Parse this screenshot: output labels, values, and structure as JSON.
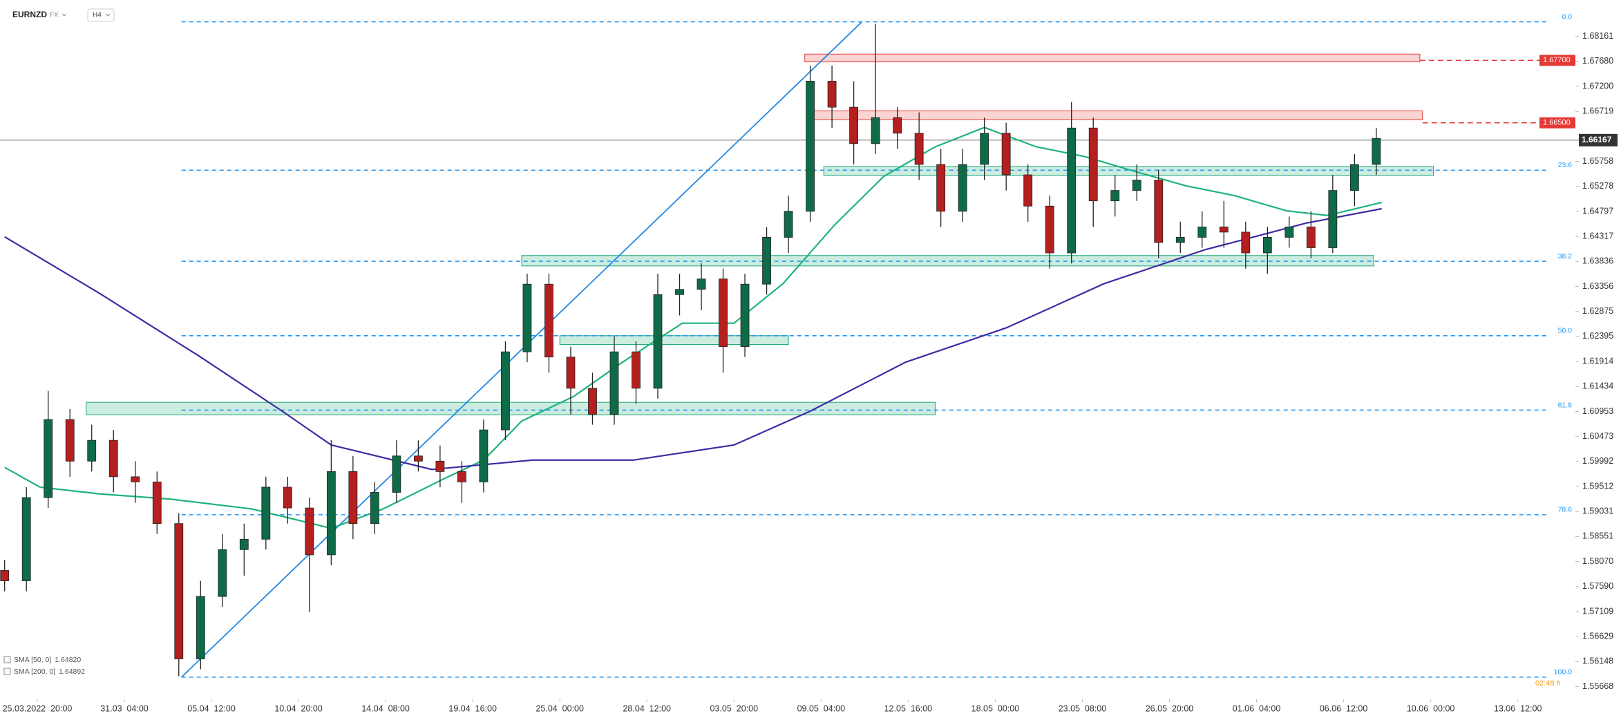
{
  "chart_data": {
    "type": "candlestick",
    "symbol": "EURNZD",
    "market": "FX",
    "timeframe": "H4",
    "up_color": "#0f6b47",
    "down_color": "#b3201f",
    "x": [
      -12,
      -4,
      4,
      12,
      20,
      28,
      36,
      44,
      52,
      60,
      68,
      76,
      84,
      92,
      100,
      108,
      116,
      124,
      132,
      140,
      148,
      156,
      164,
      172,
      180,
      188,
      196,
      204,
      212,
      220,
      228,
      236,
      244,
      252,
      260,
      268,
      276,
      284,
      292,
      300,
      308,
      316,
      324,
      332,
      340,
      348,
      356,
      364,
      372,
      380,
      388,
      396,
      404,
      412,
      420,
      428,
      436,
      444,
      452,
      460,
      468,
      476,
      484,
      492
    ],
    "open": [
      1.579,
      1.577,
      1.593,
      1.608,
      1.6,
      1.604,
      1.597,
      1.596,
      1.588,
      1.562,
      1.574,
      1.583,
      1.585,
      1.595,
      1.591,
      1.582,
      1.598,
      1.588,
      1.594,
      1.601,
      1.6,
      1.598,
      1.596,
      1.606,
      1.621,
      1.634,
      1.62,
      1.614,
      1.609,
      1.621,
      1.614,
      1.632,
      1.633,
      1.635,
      1.622,
      1.634,
      1.643,
      1.648,
      1.673,
      1.668,
      1.661,
      1.666,
      1.663,
      1.657,
      1.648,
      1.657,
      1.663,
      1.655,
      1.649,
      1.64,
      1.664,
      1.65,
      1.652,
      1.654,
      1.642,
      1.643,
      1.645,
      1.644,
      1.64,
      1.643,
      1.645,
      1.641,
      1.652,
      1.657
    ],
    "high": [
      1.581,
      1.595,
      1.6135,
      1.61,
      1.607,
      1.606,
      1.6,
      1.598,
      1.59,
      1.577,
      1.586,
      1.588,
      1.597,
      1.597,
      1.593,
      1.604,
      1.601,
      1.596,
      1.604,
      1.604,
      1.603,
      1.6,
      1.608,
      1.623,
      1.636,
      1.636,
      1.622,
      1.617,
      1.624,
      1.623,
      1.636,
      1.636,
      1.638,
      1.637,
      1.636,
      1.645,
      1.651,
      1.676,
      1.676,
      1.673,
      1.684,
      1.668,
      1.667,
      1.66,
      1.66,
      1.666,
      1.665,
      1.657,
      1.651,
      1.669,
      1.666,
      1.655,
      1.657,
      1.656,
      1.646,
      1.648,
      1.65,
      1.646,
      1.645,
      1.647,
      1.648,
      1.655,
      1.659,
      1.664
    ],
    "low": [
      1.575,
      1.575,
      1.591,
      1.597,
      1.598,
      1.594,
      1.592,
      1.586,
      1.5587,
      1.56,
      1.572,
      1.578,
      1.583,
      1.588,
      1.571,
      1.58,
      1.585,
      1.586,
      1.592,
      1.598,
      1.595,
      1.592,
      1.594,
      1.604,
      1.619,
      1.617,
      1.609,
      1.607,
      1.607,
      1.611,
      1.612,
      1.628,
      1.629,
      1.617,
      1.62,
      1.632,
      1.64,
      1.646,
      1.664,
      1.657,
      1.659,
      1.66,
      1.654,
      1.645,
      1.646,
      1.654,
      1.652,
      1.646,
      1.637,
      1.638,
      1.645,
      1.647,
      1.65,
      1.639,
      1.64,
      1.641,
      1.641,
      1.637,
      1.636,
      1.641,
      1.639,
      1.64,
      1.649,
      1.655
    ],
    "close": [
      1.577,
      1.593,
      1.608,
      1.6,
      1.604,
      1.597,
      1.596,
      1.588,
      1.562,
      1.574,
      1.583,
      1.585,
      1.595,
      1.591,
      1.582,
      1.598,
      1.588,
      1.594,
      1.601,
      1.6,
      1.598,
      1.596,
      1.606,
      1.621,
      1.634,
      1.62,
      1.614,
      1.609,
      1.621,
      1.614,
      1.632,
      1.633,
      1.635,
      1.622,
      1.634,
      1.643,
      1.648,
      1.673,
      1.668,
      1.661,
      1.666,
      1.663,
      1.657,
      1.648,
      1.657,
      1.663,
      1.655,
      1.649,
      1.64,
      1.664,
      1.65,
      1.652,
      1.654,
      1.642,
      1.643,
      1.645,
      1.644,
      1.64,
      1.643,
      1.645,
      1.641,
      1.652,
      1.657,
      1.662
    ],
    "xlim": [
      -13.7,
      555
    ],
    "xticks": [
      {
        "value": 0,
        "label": "25.03.2022  20:00"
      },
      {
        "value": 32,
        "label": "31.03  04:00"
      },
      {
        "value": 64,
        "label": "05.04  12:00"
      },
      {
        "value": 96,
        "label": "10.04  20:00"
      },
      {
        "value": 128,
        "label": "14.04  08:00"
      },
      {
        "value": 160,
        "label": "19.04  16:00"
      },
      {
        "value": 192,
        "label": "25.04  00:00"
      },
      {
        "value": 224,
        "label": "28.04  12:00"
      },
      {
        "value": 256,
        "label": "03.05  20:00"
      },
      {
        "value": 288,
        "label": "09.05  04:00"
      },
      {
        "value": 320,
        "label": "12.05  16:00"
      },
      {
        "value": 352,
        "label": "18.05  00:00"
      },
      {
        "value": 384,
        "label": "23.05  08:00"
      },
      {
        "value": 416,
        "label": "26.05  20:00"
      },
      {
        "value": 448,
        "label": "01.06  04:00"
      },
      {
        "value": 480,
        "label": "06.06  12:00"
      },
      {
        "value": 512,
        "label": "10.06  00:00"
      },
      {
        "value": 544,
        "label": "13.06  12:00"
      }
    ],
    "ylim": [
      1.5545,
      1.687
    ],
    "yticks": [
      1.68161,
      {
        "value": 1.6768,
        "label": "1.67680"
      },
      {
        "value": 1.672,
        "label": "1.67200"
      },
      1.66719,
      1.65758,
      1.65278,
      1.64797,
      1.64317,
      1.63836,
      1.63356,
      1.62875,
      1.62395,
      1.61914,
      1.61434,
      1.60953,
      1.60473,
      1.59992,
      1.59512,
      1.59031,
      1.58551,
      {
        "value": 1.5807,
        "label": "1.58070"
      },
      {
        "value": 1.5759,
        "label": "1.57590"
      },
      1.57109,
      1.56629,
      1.56148,
      1.55668
    ],
    "grid": false,
    "overlays": [
      {
        "name": "SMA [50, 0]",
        "color": "#1db37a",
        "last": {
          "value": 1.6482,
          "label": "1.64820"
        },
        "x": [
          -12,
          1,
          23,
          49,
          79,
          108,
          127,
          149,
          164,
          178,
          197,
          215,
          237,
          256,
          274,
          293,
          311,
          330,
          348,
          367,
          385,
          403,
          422,
          440,
          459,
          474,
          494
        ],
        "values": [
          1.5988,
          1.595,
          1.5937,
          1.5927,
          1.5908,
          1.5871,
          1.5908,
          1.5965,
          1.6002,
          1.6077,
          1.6124,
          1.619,
          1.6265,
          1.6265,
          1.6341,
          1.6454,
          1.6547,
          1.6604,
          1.6641,
          1.6604,
          1.6585,
          1.6557,
          1.6529,
          1.651,
          1.6481,
          1.6472,
          1.6497
        ]
      },
      {
        "name": "SMA [200, 0]",
        "color": "#3f2aa6",
        "last": {
          "value": 1.64892,
          "label": "1.64892"
        },
        "x": [
          -12,
          23,
          60,
          90,
          108,
          145,
          182,
          219,
          256,
          284,
          319,
          356,
          392,
          429,
          466,
          494
        ],
        "values": [
          1.6431,
          1.6322,
          1.62,
          1.6096,
          1.6031,
          1.5984,
          1.6002,
          1.6002,
          1.6031,
          1.6096,
          1.619,
          1.6256,
          1.6341,
          1.6406,
          1.6457,
          1.6485
        ]
      }
    ],
    "fib_color": "#2196f3",
    "fib_start": 53,
    "fib_levels": [
      {
        "value": 1.6844,
        "label": "0.0"
      },
      {
        "value": 1.6559,
        "label": "23.6"
      },
      {
        "value": 1.6384,
        "label": "38.2"
      },
      {
        "value": 1.6241,
        "label": "50.0"
      },
      {
        "value": 1.6098,
        "label": "61.8"
      },
      {
        "value": 1.5897,
        "label": "78.6"
      },
      {
        "value": 1.5585,
        "label": "100.0"
      }
    ],
    "trend_line": {
      "color": "#1e88e5",
      "x": [
        53,
        303
      ],
      "values": [
        1.5585,
        1.6844
      ]
    },
    "zones": [
      {
        "x": [
          282,
          508
        ],
        "range": [
          1.6767,
          1.6782
        ],
        "color": "#e53935"
      },
      {
        "x": [
          283,
          509
        ],
        "range": [
          1.6656,
          1.6673
        ],
        "color": "#e53935"
      },
      {
        "x": [
          289,
          513
        ],
        "range": [
          1.6549,
          1.6566
        ],
        "color": "#18a873"
      },
      {
        "x": [
          178,
          491
        ],
        "range": [
          1.6375,
          1.6395
        ],
        "color": "#18a873"
      },
      {
        "x": [
          192,
          276
        ],
        "range": [
          1.6224,
          1.6241
        ],
        "color": "#18a873"
      },
      {
        "x": [
          18,
          330
        ],
        "range": [
          1.6089,
          1.6113
        ],
        "color": "#18a873"
      }
    ],
    "price_lines": [
      {
        "value": 1.677,
        "label": "1.67700",
        "x": 508,
        "color": "#e53935"
      },
      {
        "value": 1.665,
        "label": "1.66500",
        "x": 509,
        "color": "#e53935"
      }
    ],
    "last_price": 1.66167,
    "countdown": "02:48 h"
  }
}
